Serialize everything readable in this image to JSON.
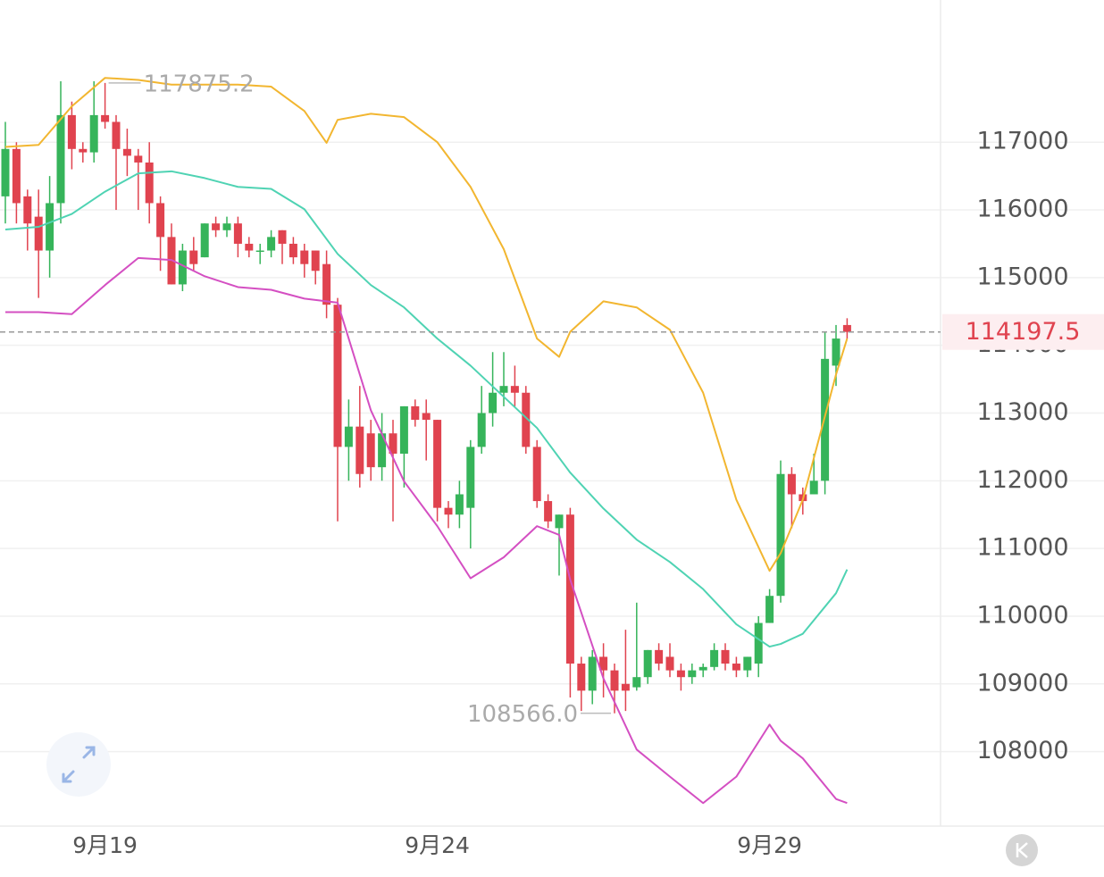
{
  "chart_data": {
    "type": "candlestick",
    "categories": [
      null,
      null,
      null,
      null,
      null,
      null,
      null,
      null,
      null,
      "9月19",
      null,
      null,
      null,
      null,
      null,
      null,
      null,
      null,
      null,
      null,
      null,
      null,
      null,
      null,
      null,
      null,
      null,
      null,
      null,
      null,
      null,
      null,
      null,
      null,
      null,
      null,
      null,
      null,
      null,
      "9月24",
      null,
      null,
      null,
      null,
      null,
      null,
      null,
      null,
      null,
      null,
      null,
      null,
      null,
      null,
      null,
      null,
      null,
      null,
      null,
      null,
      null,
      null,
      null,
      null,
      null,
      null,
      null,
      null,
      null,
      "9月29",
      null,
      null,
      null,
      null,
      null,
      null,
      null
    ],
    "open": [
      116200,
      116900,
      116200,
      115900,
      115400,
      116100,
      117400,
      116900,
      116850,
      117400,
      117300,
      116900,
      116800,
      116700,
      116100,
      115600,
      114900,
      115400,
      115300,
      115800,
      115700,
      115800,
      115500,
      115400,
      115400,
      115700,
      115500,
      115400,
      115400,
      115200,
      114600,
      112500,
      112800,
      112700,
      112200,
      112700,
      112400,
      113100,
      113000,
      112900,
      111600,
      111500,
      111600,
      112500,
      113000,
      113300,
      113400,
      113300,
      112500,
      111700,
      111300,
      111500,
      109300,
      108900,
      109400,
      109200,
      109000,
      108950,
      109100,
      109500,
      109400,
      109200,
      109100,
      109200,
      109250,
      109500,
      109300,
      109200,
      109300,
      109900,
      110300,
      112100,
      111800,
      111800,
      112000,
      113700,
      114300
    ],
    "high": [
      117300,
      117000,
      116300,
      116300,
      116500,
      117900,
      117600,
      117000,
      117900,
      117875.2,
      117400,
      117200,
      116900,
      117000,
      116200,
      115800,
      115500,
      115600,
      115800,
      115900,
      115900,
      115900,
      115600,
      115500,
      115700,
      115700,
      115600,
      115500,
      115400,
      115400,
      114700,
      113200,
      113400,
      112900,
      113000,
      112900,
      113100,
      113200,
      113200,
      112900,
      111700,
      112000,
      112600,
      113400,
      113900,
      113900,
      113700,
      113400,
      112600,
      111800,
      111500,
      111600,
      109400,
      109500,
      109600,
      109300,
      109800,
      110200,
      109500,
      109600,
      109600,
      109300,
      109300,
      109300,
      109600,
      109600,
      109400,
      109400,
      110000,
      110400,
      112300,
      112200,
      111900,
      112400,
      114200,
      114300,
      114400
    ],
    "low": [
      115800,
      115800,
      115400,
      114700,
      115000,
      115800,
      116600,
      116700,
      116700,
      117200,
      116000,
      116500,
      116000,
      115800,
      115100,
      114900,
      114800,
      115100,
      115300,
      115600,
      115600,
      115300,
      115300,
      115200,
      115300,
      115200,
      115200,
      115000,
      114900,
      114400,
      111400,
      112000,
      111900,
      112000,
      112000,
      111400,
      111900,
      112800,
      112300,
      111400,
      111300,
      111300,
      111000,
      112400,
      112800,
      113100,
      113100,
      112400,
      111600,
      111300,
      110600,
      108800,
      108600,
      108700,
      108800,
      108566,
      108600,
      108900,
      109000,
      109200,
      109100,
      108900,
      109000,
      109100,
      109200,
      109200,
      109100,
      109100,
      109100,
      109900,
      110200,
      111300,
      111500,
      111800,
      111800,
      113400,
      114100
    ],
    "close": [
      116900,
      116100,
      115800,
      115400,
      116100,
      117400,
      116900,
      116850,
      117400,
      117300,
      116900,
      116800,
      116700,
      116100,
      115600,
      114900,
      115400,
      115200,
      115800,
      115700,
      115800,
      115500,
      115400,
      115400,
      115600,
      115500,
      115300,
      115200,
      115100,
      114600,
      112500,
      112800,
      112100,
      112200,
      112700,
      112400,
      113100,
      112900,
      112900,
      111600,
      111500,
      111800,
      112500,
      113000,
      113300,
      113400,
      113300,
      112500,
      111700,
      111400,
      111500,
      109300,
      108900,
      109400,
      109200,
      108900,
      108900,
      109100,
      109500,
      109300,
      109200,
      109100,
      109200,
      109250,
      109500,
      109300,
      109200,
      109400,
      109900,
      110300,
      112100,
      111800,
      111700,
      112000,
      113800,
      114100,
      114197.5
    ],
    "up_color": "#36b45a",
    "down_color": "#e0434f",
    "low_label": "108566.0",
    "series": [
      {
        "color": "#f2b630",
        "x": [
          0,
          3,
          6,
          9,
          12,
          15,
          18,
          21,
          24,
          27,
          29,
          30,
          33,
          36,
          39,
          42,
          45,
          48,
          50,
          51,
          54,
          57,
          60,
          63,
          66,
          69,
          70,
          72,
          75,
          76
        ],
        "values": [
          116930,
          116960,
          117530,
          117950,
          117920,
          117850,
          117850,
          117850,
          117820,
          117460,
          116990,
          117330,
          117420,
          117370,
          117000,
          116340,
          115420,
          114100,
          113830,
          114200,
          114650,
          114560,
          114230,
          113300,
          111720,
          110670,
          110930,
          111720,
          113570,
          114100
        ]
      },
      {
        "color": "#4fd3b3",
        "x": [
          0,
          3,
          6,
          9,
          12,
          15,
          18,
          21,
          24,
          27,
          30,
          33,
          36,
          39,
          42,
          45,
          48,
          51,
          54,
          57,
          60,
          63,
          66,
          69,
          70,
          72,
          75,
          76
        ],
        "values": [
          115710,
          115750,
          115940,
          116270,
          116540,
          116570,
          116470,
          116340,
          116310,
          116010,
          115350,
          114890,
          114560,
          114100,
          113700,
          113240,
          112780,
          112120,
          111590,
          111130,
          110800,
          110400,
          109880,
          109550,
          109590,
          109740,
          110340,
          110690
        ]
      },
      {
        "color": "#d44fc2",
        "x": [
          0,
          3,
          6,
          9,
          12,
          15,
          18,
          21,
          24,
          27,
          30,
          33,
          36,
          39,
          42,
          45,
          48,
          50,
          51,
          54,
          57,
          60,
          63,
          66,
          69,
          70,
          72,
          75,
          76
        ],
        "values": [
          114490,
          114490,
          114460,
          114890,
          115290,
          115260,
          115020,
          114860,
          114820,
          114690,
          114630,
          113040,
          111990,
          111330,
          110560,
          110870,
          111330,
          111200,
          110540,
          109080,
          108030,
          107630,
          107240,
          107630,
          108400,
          108160,
          107900,
          107300,
          107240
        ]
      }
    ],
    "ylim": [
      106900,
      119100
    ],
    "yticks": [
      108000,
      109000,
      110000,
      111000,
      112000,
      113000,
      114000,
      115000,
      116000,
      117000
    ],
    "grid": true
  }
}
